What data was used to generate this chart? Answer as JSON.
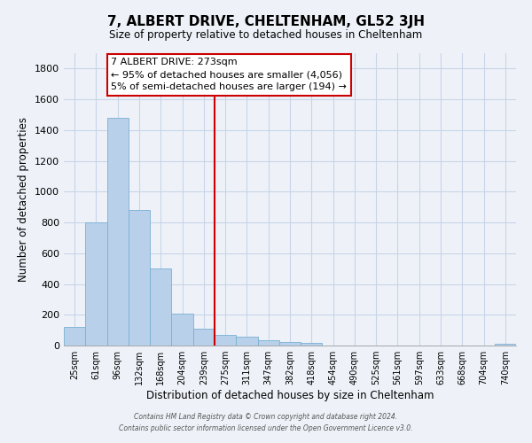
{
  "title": "7, ALBERT DRIVE, CHELTENHAM, GL52 3JH",
  "subtitle": "Size of property relative to detached houses in Cheltenham",
  "xlabel": "Distribution of detached houses by size in Cheltenham",
  "ylabel": "Number of detached properties",
  "bar_labels": [
    "25sqm",
    "61sqm",
    "96sqm",
    "132sqm",
    "168sqm",
    "204sqm",
    "239sqm",
    "275sqm",
    "311sqm",
    "347sqm",
    "382sqm",
    "418sqm",
    "454sqm",
    "490sqm",
    "525sqm",
    "561sqm",
    "597sqm",
    "633sqm",
    "668sqm",
    "704sqm",
    "740sqm"
  ],
  "bar_values": [
    120,
    800,
    1480,
    880,
    500,
    205,
    110,
    70,
    55,
    35,
    25,
    20,
    0,
    0,
    0,
    0,
    0,
    0,
    0,
    0,
    10
  ],
  "bar_color": "#b8d0ea",
  "bar_edge_color": "#7aafd4",
  "vline_index": 7,
  "vline_color": "#cc0000",
  "ylim": [
    0,
    1900
  ],
  "yticks": [
    0,
    200,
    400,
    600,
    800,
    1000,
    1200,
    1400,
    1600,
    1800
  ],
  "grid_color": "#c8d4e8",
  "background_color": "#eef2f8",
  "annotation_title": "7 ALBERT DRIVE: 273sqm",
  "annotation_line1": "← 95% of detached houses are smaller (4,056)",
  "annotation_line2": "5% of semi-detached houses are larger (194) →",
  "annotation_box_facecolor": "#ffffff",
  "annotation_box_edgecolor": "#cc0000",
  "footer_line1": "Contains HM Land Registry data © Crown copyright and database right 2024.",
  "footer_line2": "Contains public sector information licensed under the Open Government Licence v3.0."
}
